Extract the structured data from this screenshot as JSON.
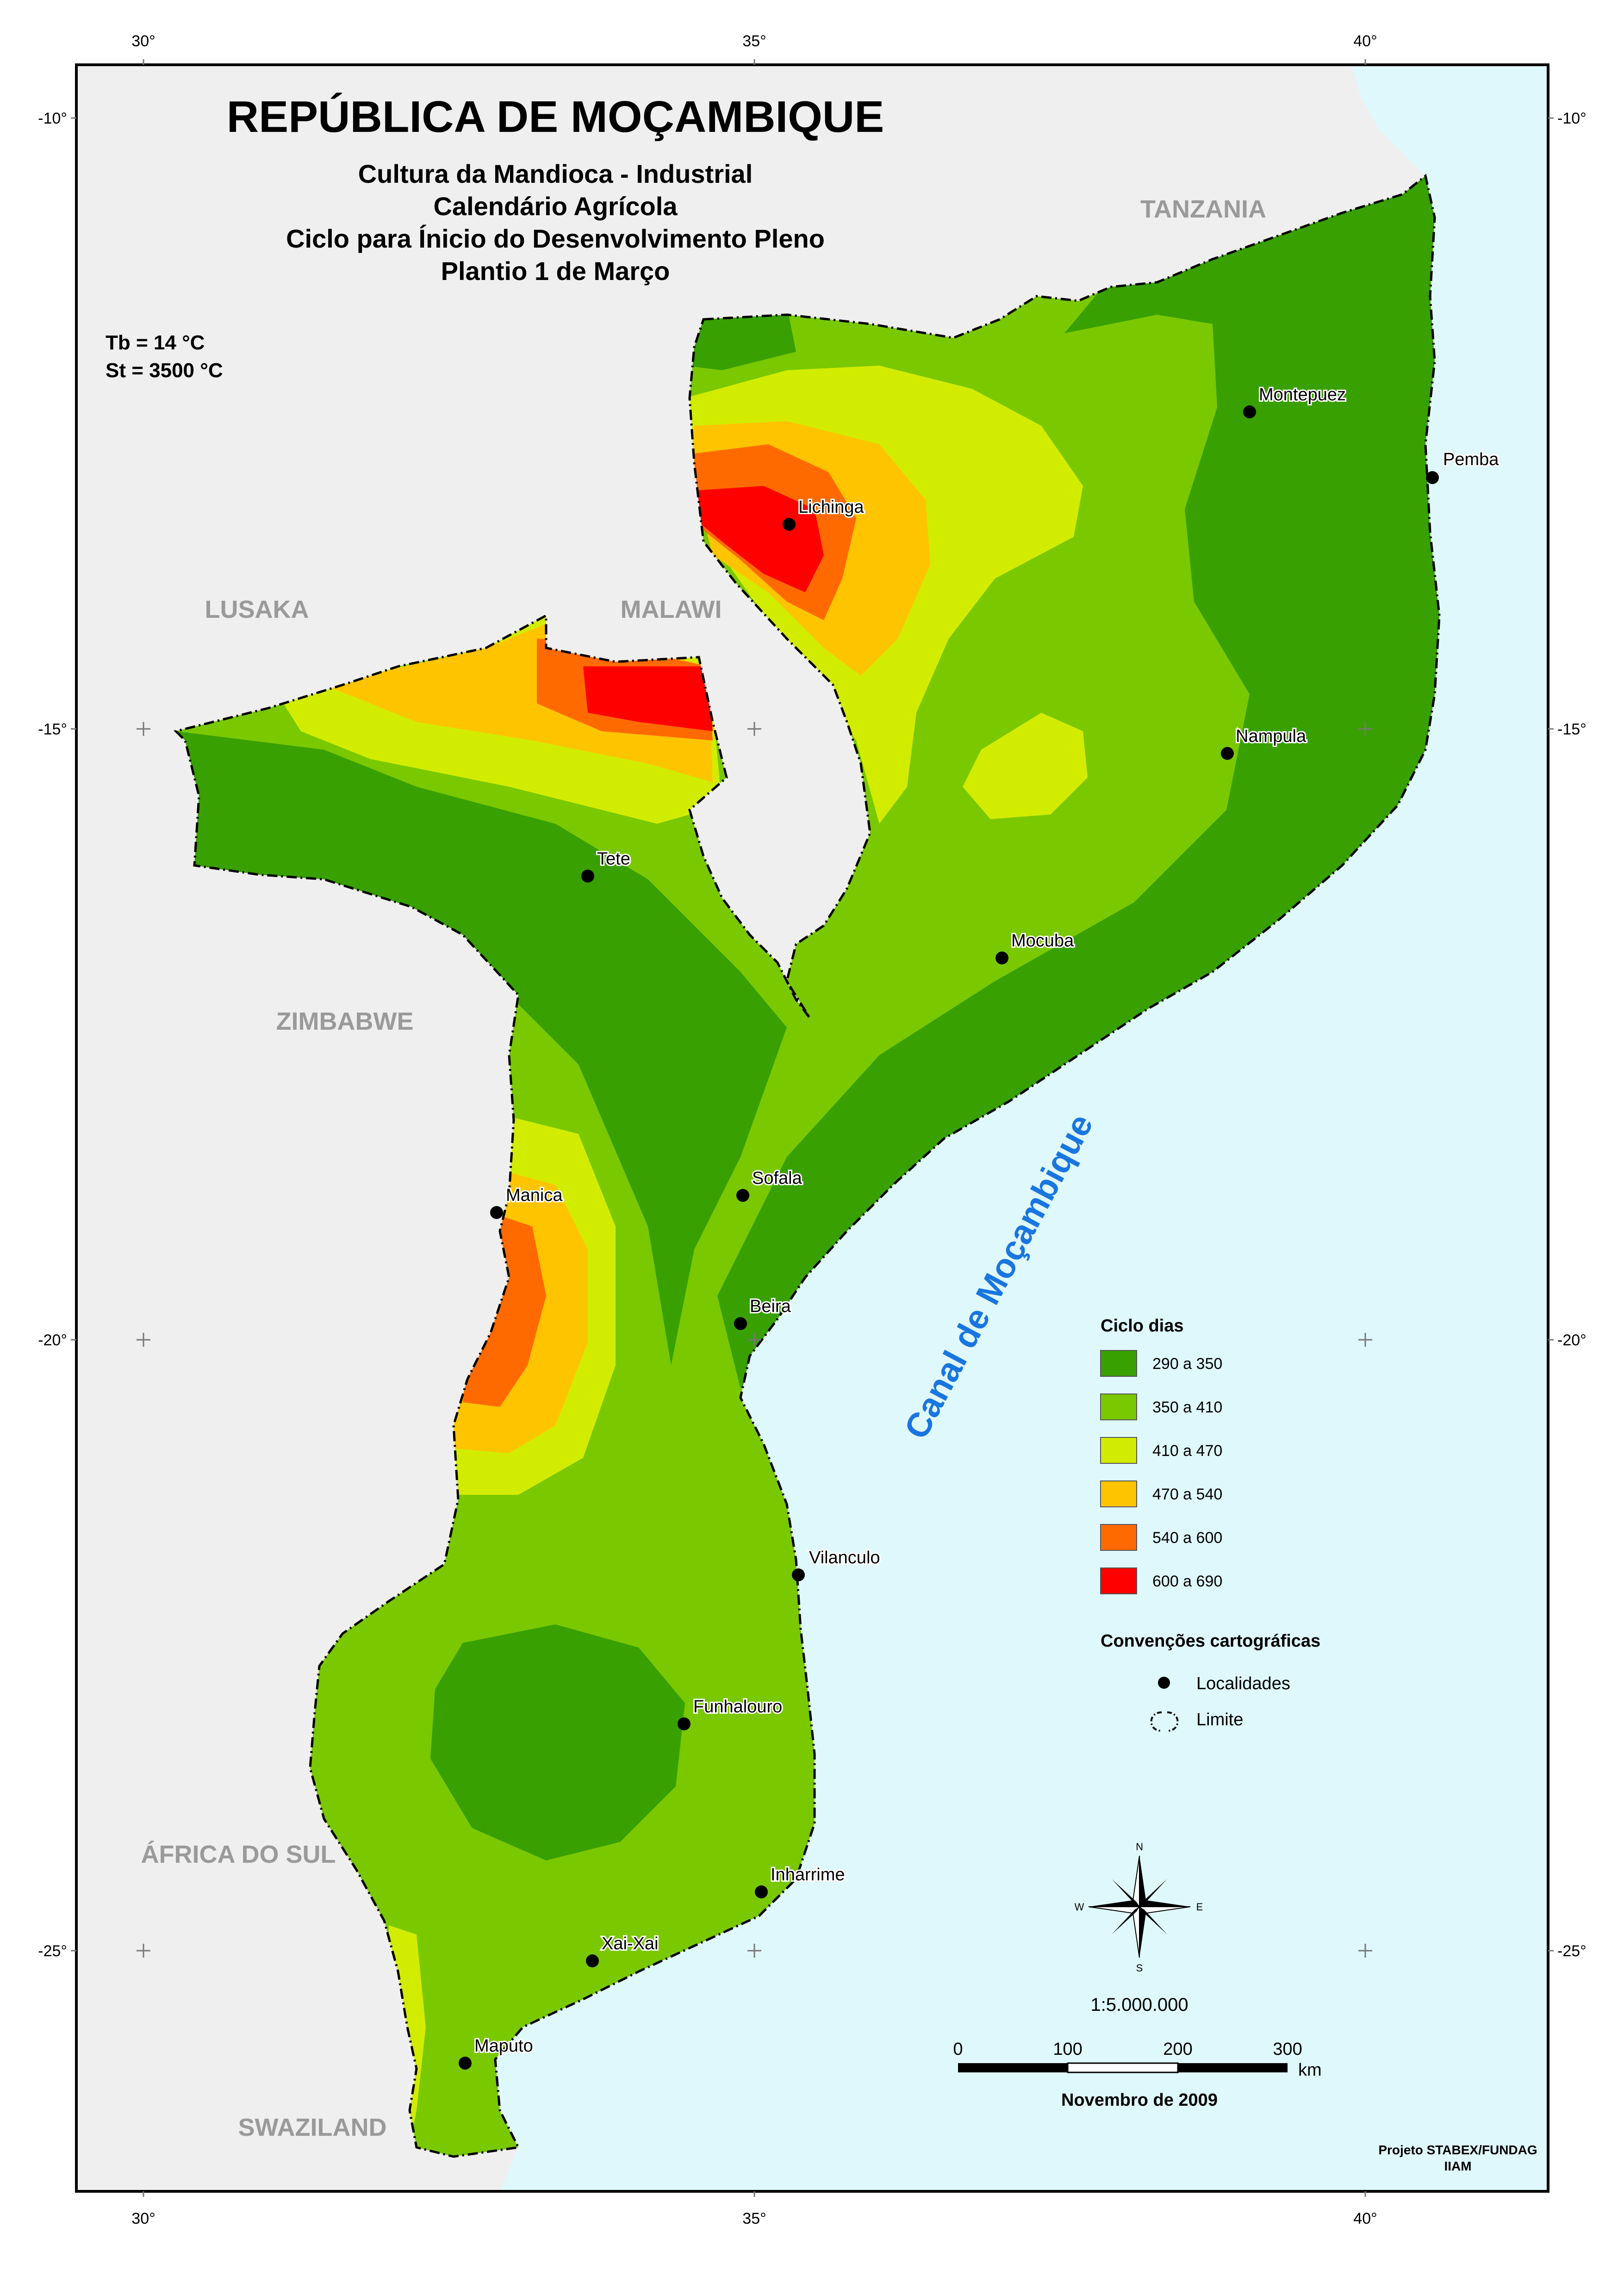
{
  "title": "REPÚBLICA DE MOÇAMBIQUE",
  "subtitle_lines": [
    "Cultura da Mandioca - Industrial",
    "Calendário Agrícola",
    "Ciclo para Ínicio do Desenvolvimento Pleno",
    "Plantio 1 de Março"
  ],
  "params": [
    "Tb = 14 °C",
    "St =  3500 °C"
  ],
  "lon_ticks": [
    "30°",
    "35°",
    "40°"
  ],
  "lat_ticks": [
    "-10°",
    "-15°",
    "-20°",
    "-25°"
  ],
  "countries": [
    "TANZANIA",
    "LUSAKA",
    "MALAWI",
    "ZIMBABWE",
    "ÁFRICA DO SUL",
    "SWAZILAND"
  ],
  "sea_label": "Canal de Moçambique",
  "places": [
    "Montepuez",
    "Pemba",
    "Lichinga",
    "Nampula",
    "Tete",
    "Mocuba",
    "Sofala",
    "Manica",
    "Beira",
    "Vilanculo",
    "Funhalouro",
    "Inharrime",
    "Xai-Xai",
    "Maputo"
  ],
  "legend": {
    "title": "Ciclo dias",
    "classes": [
      {
        "label": "290 a 350",
        "color": "#38a000"
      },
      {
        "label": "350 a 410",
        "color": "#7ac800"
      },
      {
        "label": "410 a 470",
        "color": "#d2ec00"
      },
      {
        "label": "470 a 540",
        "color": "#ffc400"
      },
      {
        "label": "540 a 600",
        "color": "#ff6a00"
      },
      {
        "label": "600 a 690",
        "color": "#ff0000"
      }
    ]
  },
  "conventions": {
    "title": "Convenções cartográficas",
    "items": [
      "Localidades",
      "Limite"
    ]
  },
  "compass": [
    "N",
    "S",
    "W",
    "E"
  ],
  "scale": {
    "ratio": "1:5.000.000",
    "ticks": [
      "0",
      "100",
      "200",
      "300"
    ],
    "unit": "km"
  },
  "date": "Novembro de 2009",
  "credits": [
    "Projeto STABEX/FUNDAG",
    "IIAM"
  ],
  "colors": {
    "land_other": "#efefef",
    "sea": "#dff8fc",
    "country_label": "#9a9a9a",
    "sea_label": "#1976e0"
  }
}
